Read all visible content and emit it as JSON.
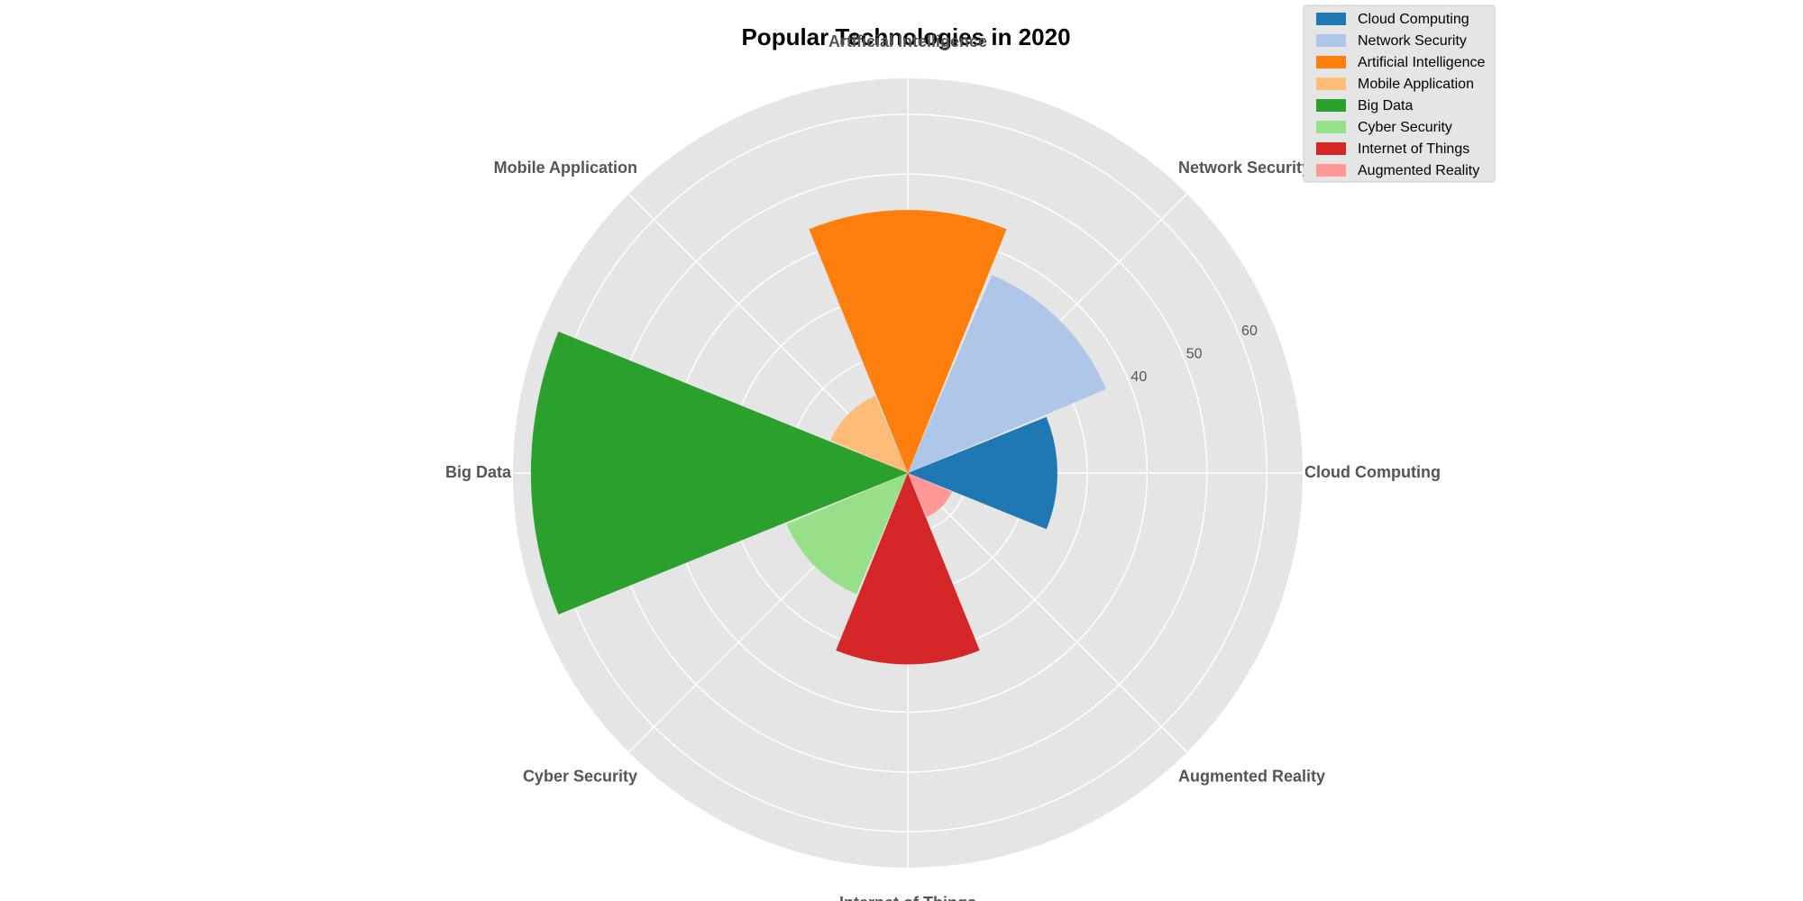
{
  "chart_data": {
    "type": "polar-bar",
    "title": "Popular Technologies in 2020",
    "categories": [
      "Cloud Computing",
      "Network Security",
      "Artificial Intelligence",
      "Mobile Application",
      "Big Data",
      "Cyber Security",
      "Internet of Things",
      "Augmented Reality"
    ],
    "values": [
      25,
      36,
      44,
      14,
      63,
      22,
      32,
      8
    ],
    "colors": [
      "#1f77b4",
      "#aec7e8",
      "#ff7f0e",
      "#ffbb78",
      "#2ca02c",
      "#98df8a",
      "#d62728",
      "#ff9896"
    ],
    "rlim": [
      0,
      66
    ],
    "r_ticks": [
      10,
      20,
      30,
      40,
      50,
      60
    ],
    "r_tick_labels_visible": [
      "40",
      "50",
      "60"
    ],
    "grid": true,
    "legend": {
      "placement": "upper-right",
      "entries": [
        "Cloud Computing",
        "Network Security",
        "Artificial Intelligence",
        "Mobile Application",
        "Big Data",
        "Cyber Security",
        "Internet of Things",
        "Augmented Reality"
      ]
    },
    "background": "#e5e5e5",
    "gridline_color": "#ffffff"
  }
}
